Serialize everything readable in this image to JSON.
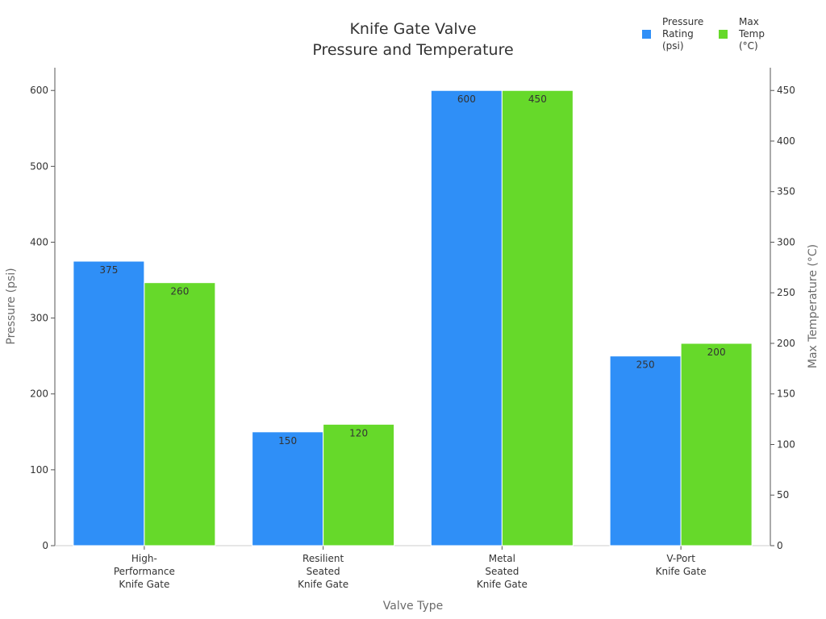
{
  "chart_data": {
    "type": "bar",
    "title": [
      "Knife Gate Valve",
      "Pressure and Temperature"
    ],
    "xlabel": "Valve Type",
    "ylabel": "Pressure (psi)",
    "y2label": "Max Temperature (°C)",
    "categories": [
      [
        "High-",
        "Performance",
        "Knife Gate"
      ],
      [
        "Resilient",
        "Seated",
        "Knife Gate"
      ],
      [
        "Metal",
        "Seated",
        "Knife Gate"
      ],
      [
        "V-Port",
        "Knife Gate"
      ]
    ],
    "series": [
      {
        "name": [
          "Pressure",
          "Rating",
          "(psi)"
        ],
        "axis": "left",
        "color": "#2f8ff7",
        "values": [
          375,
          150,
          600,
          250
        ]
      },
      {
        "name": [
          "Max",
          "Temp",
          "(°C)"
        ],
        "axis": "right",
        "color": "#66d92a",
        "values": [
          260,
          120,
          450,
          200
        ]
      }
    ],
    "ylim": [
      0,
      630
    ],
    "y2lim": [
      0,
      472.5
    ],
    "yticks": [
      0,
      100,
      200,
      300,
      400,
      500,
      600
    ],
    "y2ticks": [
      0,
      50,
      100,
      150,
      200,
      250,
      300,
      350,
      400,
      450
    ],
    "legend": "top-right",
    "grid": false
  }
}
